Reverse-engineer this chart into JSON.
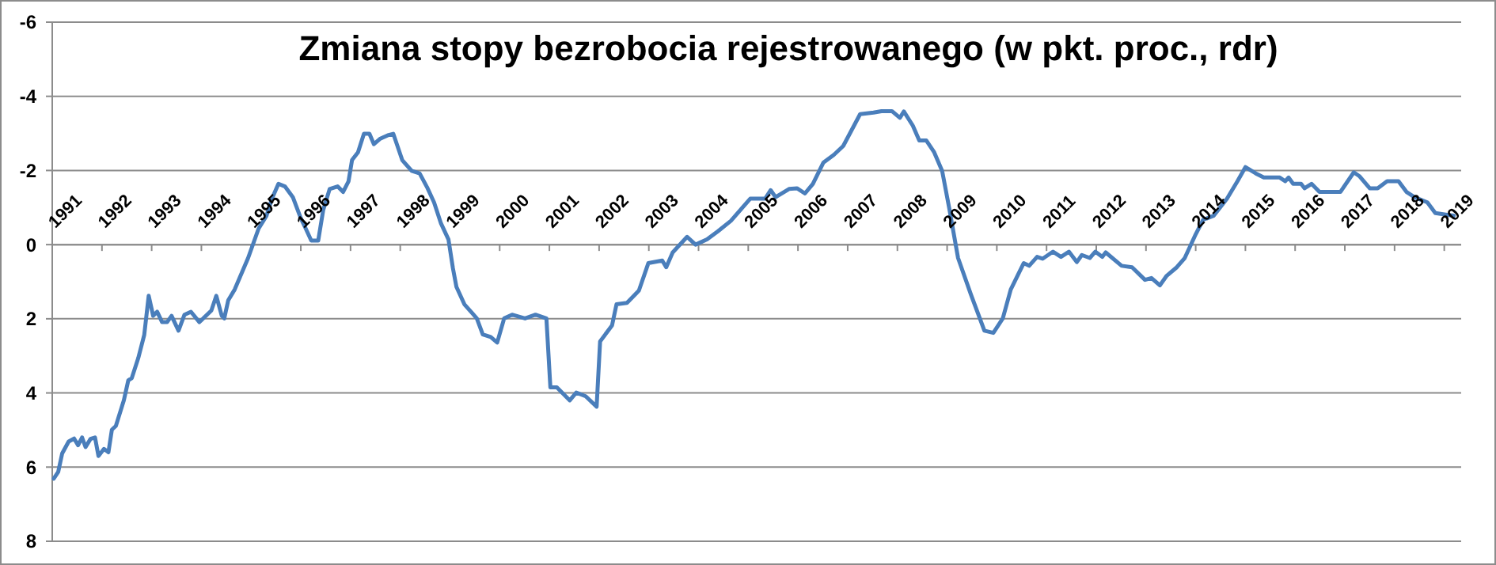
{
  "chart_data": {
    "type": "line",
    "title": "Zmiana stopy bezrobocia rejestrowanego (w pkt. proc., rdr)",
    "x": [
      1991.03,
      1991.12,
      1991.2,
      1991.33,
      1991.44,
      1991.52,
      1991.6,
      1991.67,
      1991.77,
      1991.86,
      1991.93,
      1992.04,
      1992.13,
      1992.2,
      1992.28,
      1992.44,
      1992.53,
      1992.6,
      1992.73,
      1992.85,
      1992.94,
      1993.03,
      1993.11,
      1993.21,
      1993.31,
      1993.4,
      1993.54,
      1993.66,
      1993.79,
      1993.96,
      1994.2,
      1994.3,
      1994.41,
      1994.46,
      1994.54,
      1994.67,
      1994.94,
      1995.15,
      1995.31,
      1995.42,
      1995.55,
      1995.68,
      1995.84,
      1996.0,
      1996.1,
      1996.21,
      1996.35,
      1996.45,
      1996.58,
      1996.74,
      1996.85,
      1996.96,
      1997.03,
      1997.15,
      1997.27,
      1997.38,
      1997.47,
      1997.59,
      1997.75,
      1997.86,
      1998.04,
      1998.23,
      1998.39,
      1998.55,
      1998.68,
      1998.82,
      1998.97,
      1999.06,
      1999.13,
      1999.29,
      1999.45,
      1999.54,
      1999.66,
      1999.82,
      1999.95,
      2000.09,
      2000.25,
      2000.51,
      2000.72,
      2000.94,
      2001.02,
      2001.15,
      2001.41,
      2001.54,
      2001.73,
      2001.95,
      2002.02,
      2002.26,
      2002.35,
      2002.56,
      2002.8,
      2002.99,
      2003.27,
      2003.35,
      2003.48,
      2003.77,
      2003.94,
      2004.17,
      2004.39,
      2004.65,
      2005.04,
      2005.34,
      2005.45,
      2005.55,
      2005.82,
      2005.98,
      2006.14,
      2006.3,
      2006.51,
      2006.72,
      2006.91,
      2007.25,
      2007.52,
      2007.68,
      2007.89,
      2008.05,
      2008.13,
      2008.31,
      2008.44,
      2008.58,
      2008.74,
      2008.9,
      2009.04,
      2009.22,
      2009.48,
      2009.75,
      2009.93,
      2010.12,
      2010.28,
      2010.54,
      2010.65,
      2010.81,
      2010.92,
      2011.13,
      2011.29,
      2011.45,
      2011.61,
      2011.71,
      2011.87,
      2011.98,
      2012.12,
      2012.19,
      2012.51,
      2012.72,
      2012.98,
      2013.11,
      2013.28,
      2013.41,
      2013.62,
      2013.78,
      2014.0,
      2014.15,
      2014.36,
      2014.63,
      2014.84,
      2015.0,
      2015.21,
      2015.37,
      2015.69,
      2015.8,
      2015.87,
      2015.96,
      2016.12,
      2016.19,
      2016.33,
      2016.49,
      2016.91,
      2017.18,
      2017.29,
      2017.5,
      2017.66,
      2017.85,
      2018.08,
      2018.24,
      2018.4,
      2018.66,
      2018.82,
      2019.03,
      2019.19
    ],
    "series": [
      {
        "color": "#4a7ebb",
        "values": [
          6.31,
          6.13,
          5.63,
          5.31,
          5.23,
          5.41,
          5.2,
          5.46,
          5.24,
          5.2,
          5.7,
          5.51,
          5.6,
          4.99,
          4.89,
          4.2,
          3.66,
          3.6,
          3.06,
          2.44,
          1.38,
          1.92,
          1.81,
          2.09,
          2.09,
          1.92,
          2.32,
          1.89,
          1.81,
          2.09,
          1.78,
          1.38,
          1.92,
          1.99,
          1.5,
          1.21,
          0.36,
          -0.43,
          -0.78,
          -1.24,
          -1.64,
          -1.57,
          -1.28,
          -0.71,
          -0.43,
          -0.11,
          -0.11,
          -0.93,
          -1.5,
          -1.57,
          -1.42,
          -1.71,
          -2.28,
          -2.49,
          -2.99,
          -2.99,
          -2.71,
          -2.85,
          -2.95,
          -2.99,
          -2.28,
          -1.99,
          -1.92,
          -1.52,
          -1.14,
          -0.57,
          -0.14,
          0.64,
          1.14,
          1.61,
          1.85,
          1.99,
          2.42,
          2.49,
          2.64,
          1.99,
          1.89,
          1.99,
          1.89,
          1.99,
          3.85,
          3.85,
          4.2,
          3.99,
          4.09,
          4.37,
          2.61,
          2.18,
          1.61,
          1.57,
          1.24,
          0.5,
          0.43,
          0.61,
          0.21,
          -0.21,
          0,
          -0.14,
          -0.36,
          -0.64,
          -1.24,
          -1.24,
          -1.47,
          -1.28,
          -1.5,
          -1.52,
          -1.38,
          -1.64,
          -2.21,
          -2.42,
          -2.66,
          -3.52,
          -3.56,
          -3.6,
          -3.6,
          -3.42,
          -3.59,
          -3.21,
          -2.81,
          -2.81,
          -2.49,
          -1.99,
          -1.0,
          0.36,
          1.35,
          2.32,
          2.38,
          1.99,
          1.21,
          0.5,
          0.57,
          0.33,
          0.38,
          0.19,
          0.33,
          0.19,
          0.47,
          0.28,
          0.36,
          0.19,
          0.33,
          0.21,
          0.57,
          0.61,
          0.95,
          0.9,
          1.1,
          0.85,
          0.61,
          0.36,
          -0.28,
          -0.67,
          -0.78,
          -1.24,
          -1.71,
          -2.09,
          -1.92,
          -1.81,
          -1.81,
          -1.71,
          -1.81,
          -1.64,
          -1.64,
          -1.52,
          -1.64,
          -1.42,
          -1.42,
          -1.95,
          -1.85,
          -1.52,
          -1.52,
          -1.71,
          -1.71,
          -1.42,
          -1.28,
          -1.14,
          -0.85,
          -0.81,
          -0.78
        ]
      }
    ],
    "xlim": [
      1991,
      2019.34
    ],
    "xticks": [
      1991,
      1992,
      1993,
      1994,
      1995,
      1996,
      1997,
      1998,
      1999,
      2000,
      2001,
      2002,
      2003,
      2004,
      2005,
      2006,
      2007,
      2008,
      2009,
      2010,
      2011,
      2012,
      2013,
      2014,
      2015,
      2016,
      2017,
      2018,
      2019
    ],
    "ylim": [
      8,
      -6
    ],
    "yticks": [
      -6,
      -4,
      -2,
      0,
      2,
      4,
      6,
      8
    ],
    "grid": "y",
    "marker": "none",
    "line_style": "solid"
  }
}
